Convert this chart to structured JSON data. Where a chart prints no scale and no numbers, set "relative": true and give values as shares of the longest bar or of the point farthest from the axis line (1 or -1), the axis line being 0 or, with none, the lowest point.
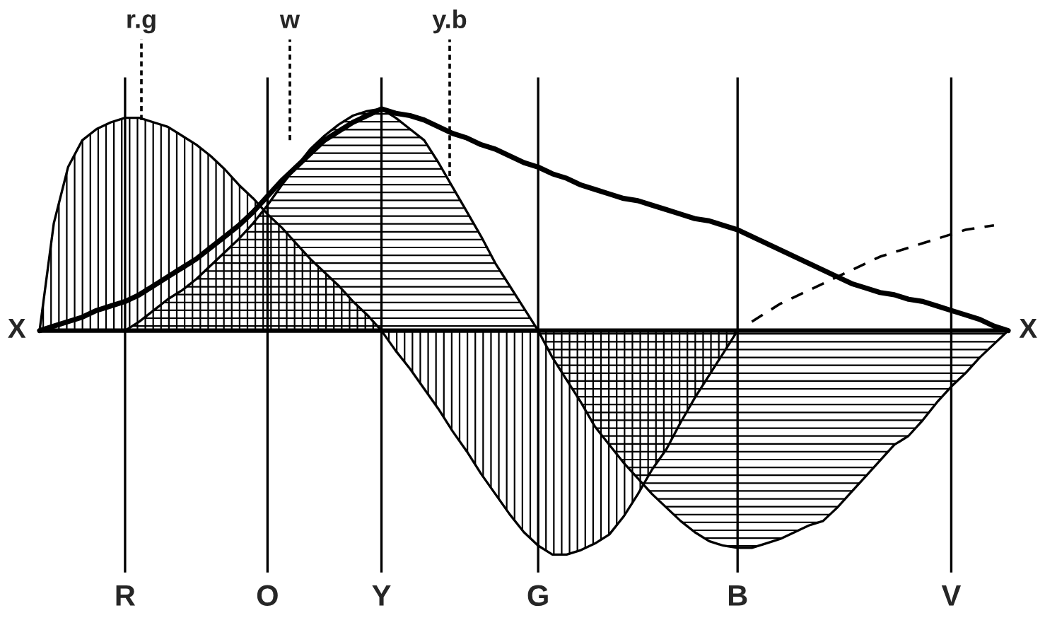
{
  "chart_data": {
    "type": "area",
    "relative": true,
    "grid": "x",
    "legend": false,
    "categories": [
      null,
      null,
      null,
      null,
      null,
      null,
      "R",
      null,
      null,
      null,
      null,
      null,
      null,
      null,
      null,
      null,
      "O",
      null,
      null,
      null,
      null,
      null,
      null,
      null,
      "Y",
      null,
      null,
      null,
      null,
      null,
      null,
      null,
      null,
      null,
      null,
      "G",
      null,
      null,
      null,
      null,
      null,
      null,
      null,
      null,
      null,
      null,
      null,
      null,
      null,
      "B",
      null,
      null,
      null,
      null,
      null,
      null,
      null,
      null,
      null,
      null,
      null,
      null,
      null,
      null,
      "V",
      null,
      null,
      null,
      null
    ],
    "series": [
      {
        "color": "#000000",
        "values": [
          0,
          0.48,
          0.73,
          0.85,
          0.9,
          0.93,
          0.95,
          0.95,
          0.93,
          0.91,
          0.87,
          0.83,
          0.78,
          0.72,
          0.65,
          0.59,
          0.52,
          0.46,
          0.39,
          0.32,
          0.26,
          0.2,
          0.13,
          0.07,
          0,
          -0.09,
          -0.17,
          -0.26,
          -0.35,
          -0.45,
          -0.54,
          -0.64,
          -0.73,
          -0.82,
          -0.9,
          -0.96,
          -1.0,
          -1.0,
          -0.98,
          -0.95,
          -0.91,
          -0.83,
          -0.73,
          -0.62,
          -0.53,
          -0.41,
          -0.3,
          -0.2,
          -0.1,
          0,
          null,
          null,
          null,
          null,
          null,
          null,
          null,
          null,
          null,
          null,
          null,
          null,
          null,
          null,
          null,
          null,
          null,
          null,
          null
        ]
      },
      {
        "color": "#000000",
        "values": [
          null,
          null,
          null,
          null,
          null,
          null,
          0,
          0.04,
          0.09,
          0.14,
          0.18,
          0.23,
          0.29,
          0.35,
          0.41,
          0.48,
          0.56,
          0.65,
          0.73,
          0.81,
          0.87,
          0.92,
          0.96,
          0.98,
          0.99,
          0.95,
          0.9,
          0.85,
          0.75,
          0.64,
          0.53,
          0.42,
          0.3,
          0.2,
          0.1,
          0,
          -0.12,
          -0.22,
          -0.32,
          -0.43,
          -0.51,
          -0.59,
          -0.66,
          -0.73,
          -0.79,
          -0.85,
          -0.9,
          -0.94,
          -0.96,
          -0.97,
          -0.97,
          -0.95,
          -0.93,
          -0.9,
          -0.87,
          -0.85,
          -0.79,
          -0.72,
          -0.65,
          -0.58,
          -0.51,
          -0.47,
          -0.4,
          -0.32,
          -0.25,
          -0.19,
          -0.12,
          -0.06,
          0
        ]
      },
      {
        "type": "line",
        "color": "#000000",
        "line_style": "solid",
        "values": [
          0,
          0.02,
          0.04,
          0.06,
          0.09,
          0.11,
          0.13,
          0.16,
          0.2,
          0.24,
          0.28,
          0.32,
          0.37,
          0.42,
          0.47,
          0.53,
          0.6,
          0.67,
          0.73,
          0.79,
          0.85,
          0.89,
          0.93,
          0.96,
          0.99,
          0.97,
          0.96,
          0.94,
          0.91,
          0.88,
          0.86,
          0.83,
          0.81,
          0.78,
          0.75,
          0.73,
          0.7,
          0.68,
          0.65,
          0.63,
          0.61,
          0.59,
          0.58,
          0.56,
          0.54,
          0.52,
          0.5,
          0.49,
          0.47,
          0.45,
          0.42,
          0.39,
          0.36,
          0.33,
          0.3,
          0.27,
          0.24,
          0.21,
          0.19,
          0.17,
          0.16,
          0.14,
          0.13,
          0.11,
          0.09,
          0.07,
          0.05,
          0.02,
          0
        ]
      },
      {
        "type": "line",
        "color": "#000000",
        "line_style": "dashed",
        "values": [
          null,
          null,
          null,
          null,
          null,
          null,
          null,
          null,
          null,
          null,
          null,
          null,
          null,
          null,
          null,
          null,
          null,
          null,
          null,
          null,
          null,
          null,
          null,
          null,
          null,
          null,
          null,
          null,
          null,
          null,
          null,
          null,
          null,
          null,
          null,
          null,
          null,
          null,
          null,
          null,
          null,
          null,
          null,
          null,
          null,
          null,
          null,
          null,
          null,
          null,
          0.04,
          0.08,
          0.12,
          0.15,
          0.18,
          0.21,
          0.24,
          0.27,
          0.3,
          0.33,
          0.35,
          0.37,
          0.39,
          0.41,
          0.43,
          0.45,
          0.46,
          0.47,
          null
        ]
      }
    ],
    "annotations": [
      "r.g",
      "w",
      "y.b",
      "X",
      "X"
    ]
  }
}
